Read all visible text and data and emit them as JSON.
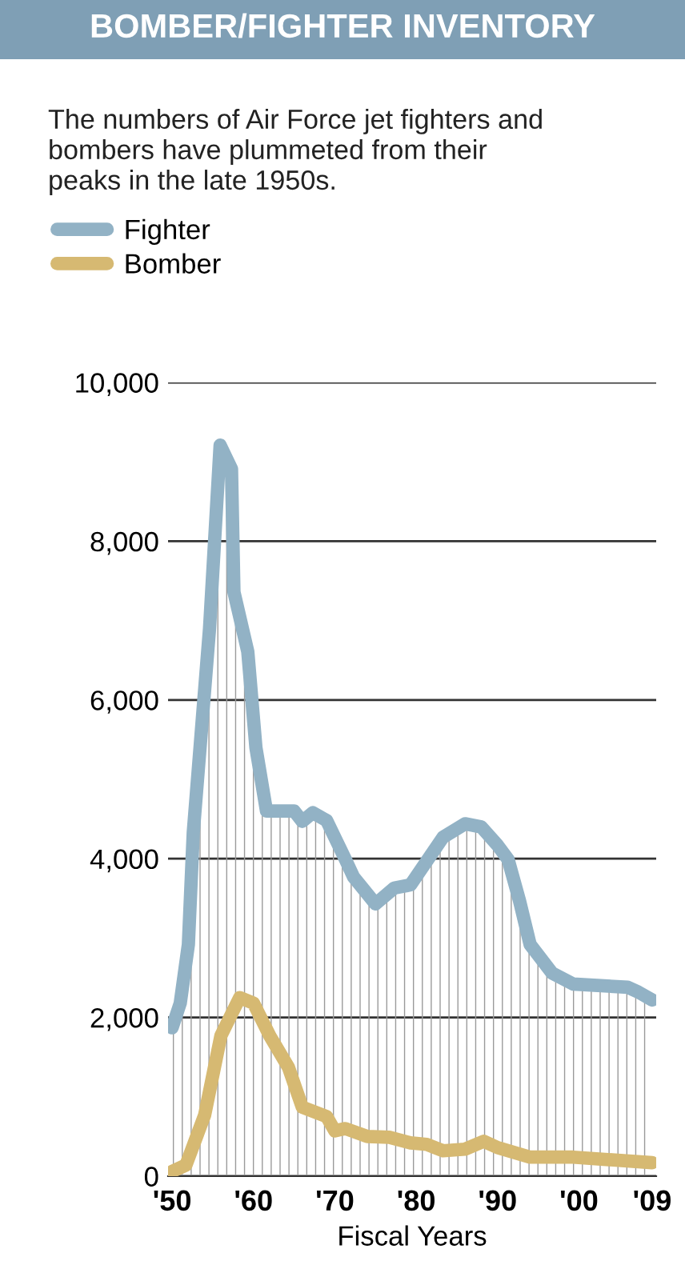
{
  "chart_data": {
    "type": "line",
    "title": "BOMBER/FIGHTER INVENTORY",
    "subtitle": "The numbers of Air Force jet fighters and\nbombers have plummeted from their\npeaks in the late 1950s.",
    "xlabel": "Fiscal Years",
    "series": [
      {
        "name": "Fighter",
        "type": "area",
        "color": "#92b2c5",
        "x": [
          1950,
          1951,
          1952,
          1952.6,
          1954.6,
          1955.9,
          1957.3,
          1957.6,
          1959.3,
          1960.3,
          1961.6,
          1965,
          1966,
          1967.3,
          1969,
          1971.3,
          1972.3,
          1975,
          1977.3,
          1979.3,
          1983.3,
          1986,
          1988,
          1990,
          1991.3,
          1992.7,
          1994,
          1996.7,
          1999.3,
          2006,
          2007.3,
          2009
        ],
        "values": [
          1870,
          2180,
          2920,
          4330,
          6900,
          9210,
          8910,
          7360,
          6610,
          5400,
          4600,
          4600,
          4470,
          4580,
          4480,
          3990,
          3770,
          3430,
          3630,
          3670,
          4270,
          4440,
          4400,
          4170,
          3990,
          3470,
          2920,
          2560,
          2420,
          2380,
          2320,
          2220
        ]
      },
      {
        "name": "Bomber",
        "color": "#d6b972",
        "x": [
          1950,
          1951.7,
          1954,
          1956,
          1958.3,
          1960,
          1962,
          1964.3,
          1966,
          1969,
          1970,
          1971.3,
          1974,
          1976.7,
          1979.3,
          1981.3,
          1983.3,
          1986,
          1988.3,
          1990,
          1994,
          1999.3,
          2009
        ],
        "values": [
          60,
          140,
          770,
          1770,
          2250,
          2180,
          1770,
          1370,
          870,
          750,
          570,
          600,
          500,
          490,
          420,
          400,
          320,
          340,
          440,
          360,
          240,
          240,
          170
        ]
      }
    ],
    "xlim": [
      1949.5,
      2009.5
    ],
    "xticks": [
      {
        "value": 1950,
        "label": "'50"
      },
      {
        "value": 1960,
        "label": "'60"
      },
      {
        "value": 1970,
        "label": "'70"
      },
      {
        "value": 1980,
        "label": "'80"
      },
      {
        "value": 1990,
        "label": "'90"
      },
      {
        "value": 2000,
        "label": "'00"
      },
      {
        "value": 2009,
        "label": "'09"
      }
    ],
    "ylim": [
      0,
      10000
    ],
    "yticks": [
      0,
      {
        "value": 2000,
        "label": "2,000"
      },
      {
        "value": 4000,
        "label": "4,000"
      },
      {
        "value": 6000,
        "label": "6,000"
      },
      {
        "value": 8000,
        "label": "8,000"
      },
      {
        "value": 10000,
        "label": "10,000"
      }
    ],
    "grid": "y",
    "legend": "top left",
    "line_style": "solid",
    "marker": "none"
  }
}
